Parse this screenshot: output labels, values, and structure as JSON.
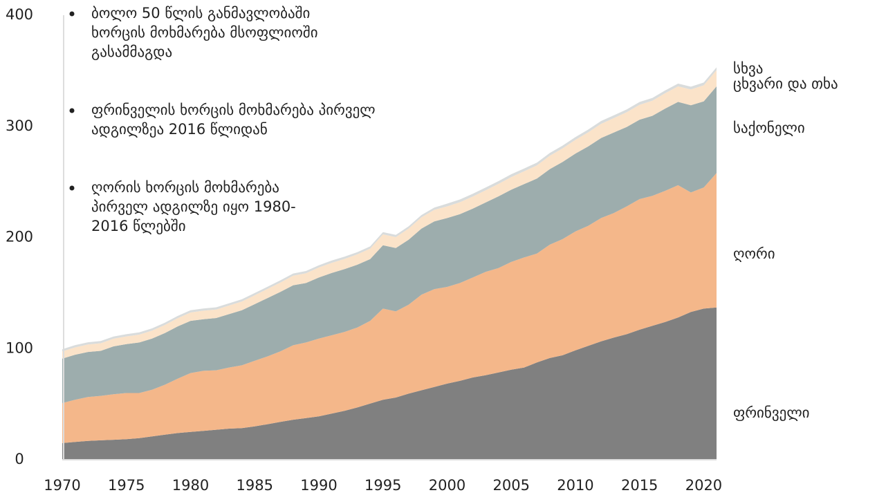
{
  "chart_data": {
    "type": "stacked_area",
    "x": [
      1970,
      1971,
      1972,
      1973,
      1974,
      1975,
      1976,
      1977,
      1978,
      1979,
      1980,
      1981,
      1982,
      1983,
      1984,
      1985,
      1986,
      1987,
      1988,
      1989,
      1990,
      1991,
      1992,
      1993,
      1994,
      1995,
      1996,
      1997,
      1998,
      1999,
      2000,
      2001,
      2002,
      2003,
      2004,
      2005,
      2006,
      2007,
      2008,
      2009,
      2010,
      2011,
      2012,
      2013,
      2014,
      2015,
      2016,
      2017,
      2018,
      2019,
      2020,
      2021
    ],
    "xlim": [
      1970,
      2021
    ],
    "xticks": [
      1970,
      1975,
      1980,
      1985,
      1990,
      1995,
      2000,
      2005,
      2010,
      2015,
      2020
    ],
    "ylim": [
      0,
      400
    ],
    "yticks": [
      0,
      100,
      200,
      300,
      400
    ],
    "series": [
      {
        "name": "ფრინველი",
        "color": "#808080",
        "values": [
          15,
          16,
          17,
          17.5,
          18,
          18.5,
          19.5,
          21,
          22.5,
          24,
          25,
          26,
          27,
          28,
          28.5,
          30,
          32,
          34,
          36,
          37.5,
          39,
          41.5,
          44,
          47,
          50.5,
          54,
          56,
          59.5,
          62.5,
          65.5,
          68.5,
          71,
          74,
          76,
          78.5,
          81,
          83,
          87.5,
          91.5,
          94,
          98.5,
          102.5,
          106.5,
          110,
          113,
          117,
          120.5,
          124,
          128,
          133,
          136,
          137
        ]
      },
      {
        "name": "ღორი",
        "color": "#f4b78a",
        "values": [
          36,
          38,
          39.5,
          40,
          41,
          41.5,
          40.5,
          42,
          45,
          49,
          53,
          54,
          53.5,
          55,
          56.5,
          59,
          61,
          63.5,
          67,
          68,
          70,
          70.5,
          71,
          72,
          74.5,
          82,
          77.5,
          80,
          86,
          88,
          87,
          88,
          90,
          93,
          94,
          97,
          99,
          98,
          102,
          104.5,
          107,
          108,
          111,
          112,
          115,
          117.5,
          117,
          118,
          119,
          107.5,
          109,
          121
        ]
      },
      {
        "name": "საქონელი",
        "color": "#9dadad",
        "values": [
          40,
          40.5,
          40.5,
          40.5,
          43,
          44,
          45.5,
          46,
          46.5,
          47,
          47,
          46.5,
          47,
          48,
          49.5,
          51,
          52.5,
          53.5,
          54,
          53.5,
          55,
          56,
          56.5,
          56.5,
          55.5,
          57,
          57,
          58.5,
          59.5,
          61,
          62,
          62,
          62,
          62.5,
          64.5,
          65,
          66,
          67.5,
          68,
          69.5,
          70,
          71.5,
          72,
          72.5,
          71.5,
          71.5,
          72,
          74,
          75,
          78.5,
          77.5,
          78
        ]
      },
      {
        "name": "ცხვარი და თხა",
        "color": "#fbe3c9",
        "values": [
          6.5,
          6.6,
          6.7,
          6.8,
          6.9,
          7,
          7.1,
          7.2,
          7.3,
          7.4,
          7.5,
          7.6,
          7.7,
          7.8,
          7.9,
          8,
          8.2,
          8.4,
          8.6,
          8.8,
          9,
          9.2,
          9.2,
          9.3,
          9.5,
          9.8,
          9.8,
          10,
          10.2,
          10.4,
          10.5,
          10.7,
          10.9,
          11,
          11.2,
          11.4,
          11.6,
          11.8,
          12,
          12.2,
          12.4,
          12.6,
          12.8,
          13,
          13.2,
          13.4,
          13.6,
          13.8,
          14,
          14.2,
          14.4,
          14.6
        ]
      },
      {
        "name": "სხვა",
        "color": "#d9dcdc",
        "values": [
          2,
          2,
          2,
          2,
          2,
          2,
          2,
          2,
          2,
          2,
          2,
          2,
          2,
          2,
          2,
          2,
          2,
          2,
          2,
          2,
          2,
          2,
          2,
          2,
          2,
          2,
          2,
          2,
          2,
          2,
          2.5,
          2.5,
          2.5,
          2.5,
          2.5,
          2.5,
          2.5,
          2.5,
          2.5,
          2.5,
          2.5,
          2.5,
          2.5,
          2.5,
          2.5,
          2.5,
          2.5,
          2.5,
          2.5,
          2.5,
          2.5,
          2.5
        ]
      }
    ],
    "annotations": [
      [
        "ბოლო 50 წლის განმავლობაში",
        "ხორცის მოხმარება მსოფლიოში",
        "გასამმაგდა"
      ],
      [
        "ფრინველის ხორცის მოხმარება პირველ",
        "ადგილზეა 2016 წლიდან"
      ],
      [
        "ღორის ხორცის მოხმარება",
        "პირველ ადგილზე იყო 1980-",
        "2016 წლებში"
      ]
    ]
  }
}
